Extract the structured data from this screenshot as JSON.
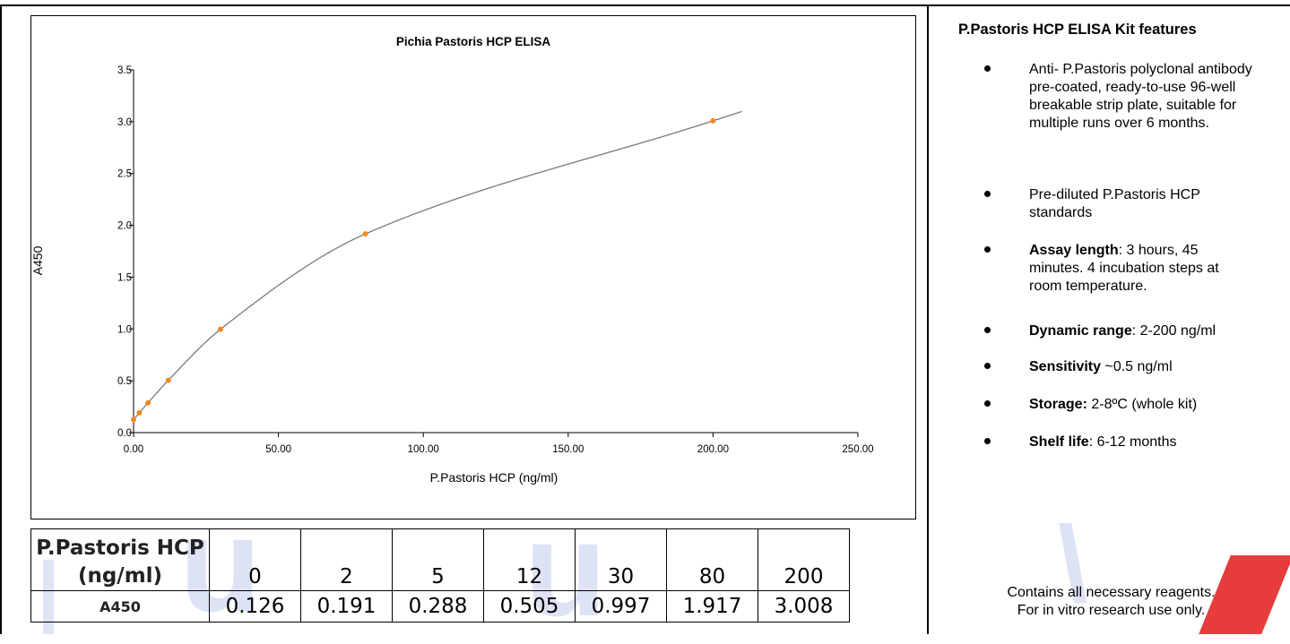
{
  "chart_data": {
    "type": "scatter",
    "title": "Pichia Pastoris HCP ELISA",
    "xlabel": "P.Pastoris HCP (ng/ml)",
    "ylabel": "A450",
    "xlim": [
      0,
      250
    ],
    "ylim": [
      0,
      3.5
    ],
    "x_ticks": [
      "0.00",
      "50.00",
      "100.00",
      "150.00",
      "200.00",
      "250.00"
    ],
    "y_ticks": [
      "0.0",
      "0.5",
      "1.0",
      "1.5",
      "2.0",
      "2.5",
      "3.0",
      "3.5"
    ],
    "points": [
      {
        "x": 0,
        "y": 0.126
      },
      {
        "x": 2,
        "y": 0.191
      },
      {
        "x": 5,
        "y": 0.288
      },
      {
        "x": 12,
        "y": 0.505
      },
      {
        "x": 30,
        "y": 0.997
      },
      {
        "x": 80,
        "y": 1.917
      },
      {
        "x": 200,
        "y": 3.008
      }
    ],
    "fit_curve_x_max": 210,
    "point_color": "#f08a1c",
    "curve_color": "#7a7a7a"
  },
  "table": {
    "header_label": "P.Pastoris HCP (ng/ml)",
    "row_label": "A450",
    "concentrations": [
      "0",
      "2",
      "5",
      "12",
      "30",
      "80",
      "200"
    ],
    "absorbances": [
      "0.126",
      "0.191",
      "0.288",
      "0.505",
      "0.997",
      "1.917",
      "3.008"
    ]
  },
  "sidebar": {
    "title": "P.Pastoris HCP ELISA Kit features",
    "features": [
      {
        "bold": "",
        "text": "Anti- P.Pastoris polyclonal antibody pre-coated, ready-to-use 96-well breakable strip plate, suitable for multiple runs over 6 months."
      },
      {
        "bold": "",
        "text": "Pre-diluted P.Pastoris HCP standards"
      },
      {
        "bold": "Assay length",
        "text": ": 3 hours, 45 minutes. 4 incubation steps at room temperature."
      },
      {
        "bold": "Dynamic range",
        "text": ": 2-200 ng/ml"
      },
      {
        "bold": "Sensitivity",
        "text": " ~0.5 ng/ml"
      },
      {
        "bold": "Storage:",
        "text": " 2-8ºC (whole kit)"
      },
      {
        "bold": "Shelf life",
        "text": ":  6-12 months"
      }
    ],
    "footer_line1": "Contains all necessary reagents.",
    "footer_line2": "For in vitro research use only."
  },
  "colors": {
    "watermark_blue": "#d6dcf3",
    "watermark_red": "#e32727"
  }
}
